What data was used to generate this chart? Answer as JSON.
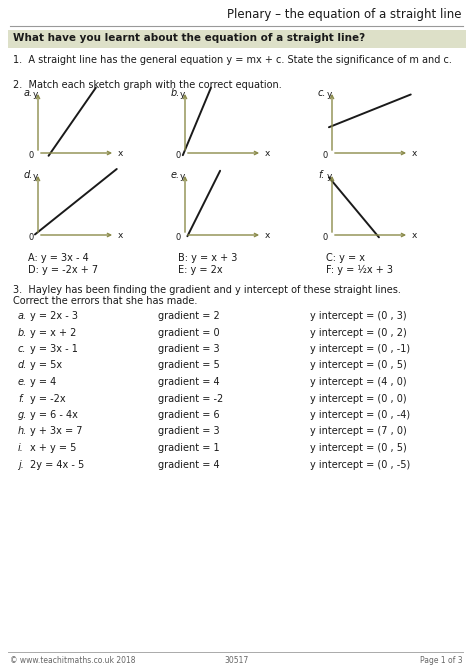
{
  "title": "Plenary – the equation of a straight line",
  "header_question": "What have you learnt about the equation of a straight line?",
  "q1_text": "1.  A straight line has the general equation y = mx + c. State the significance of m and c.",
  "q2_intro": "2.  Match each sketch graph with the correct equation.",
  "equations_row1": [
    "A: y = 3x - 4",
    "B: y = x + 3",
    "C: y = x"
  ],
  "equations_row2": [
    "D: y = -2x + 7",
    "E: y = 2x",
    "F: y = ½x + 3"
  ],
  "q3_line1": "3.  Hayley has been finding the gradient and y intercept of these straight lines.",
  "q3_line2": "    Correct the errors that she has made.",
  "q3_rows": [
    [
      "a.",
      "y = 2x - 3",
      "gradient = 2",
      "y intercept = (0 , 3)"
    ],
    [
      "b.",
      "y = x + 2",
      "gradient = 0",
      "y intercept = (0 , 2)"
    ],
    [
      "c.",
      "y = 3x - 1",
      "gradient = 3",
      "y intercept = (0 , -1)"
    ],
    [
      "d.",
      "y = 5x",
      "gradient = 5",
      "y intercept = (0 , 5)"
    ],
    [
      "e.",
      "y = 4",
      "gradient = 4",
      "y intercept = (4 , 0)"
    ],
    [
      "f.",
      "y = -2x",
      "gradient = -2",
      "y intercept = (0 , 0)"
    ],
    [
      "g.",
      "y = 6 - 4x",
      "gradient = 6",
      "y intercept = (0 , -4)"
    ],
    [
      "h.",
      "y + 3x = 7",
      "gradient = 3",
      "y intercept = (7 , 0)"
    ],
    [
      "i.",
      "x + y = 5",
      "gradient = 1",
      "y intercept = (0 , 5)"
    ],
    [
      "j.",
      "2y = 4x - 5",
      "gradient = 4",
      "y intercept = (0 , -5)"
    ]
  ],
  "footer_left": "© www.teachitmaths.co.uk 2018",
  "footer_center": "30517",
  "footer_right": "Page 1 of 3",
  "header_bg": "#dde0c8",
  "axis_color": "#8b8b4b",
  "line_color": "#1a1a1a",
  "bg_color": "#ffffff",
  "text_color": "#1a1a1a",
  "graphs": [
    {
      "label": "a.",
      "slope": 1.8,
      "intercept": -0.3,
      "neg": false
    },
    {
      "label": "b.",
      "slope": 3.0,
      "intercept": 0.05,
      "neg": false
    },
    {
      "label": "c.",
      "slope": 0.5,
      "intercept": 0.45,
      "neg": false
    },
    {
      "label": "d.",
      "slope": 1.0,
      "intercept": 0.05,
      "neg": false
    },
    {
      "label": "e.",
      "slope": 2.5,
      "intercept": -0.1,
      "neg": false
    },
    {
      "label": "f.",
      "slope": -1.5,
      "intercept": 0.9,
      "neg": true
    }
  ]
}
